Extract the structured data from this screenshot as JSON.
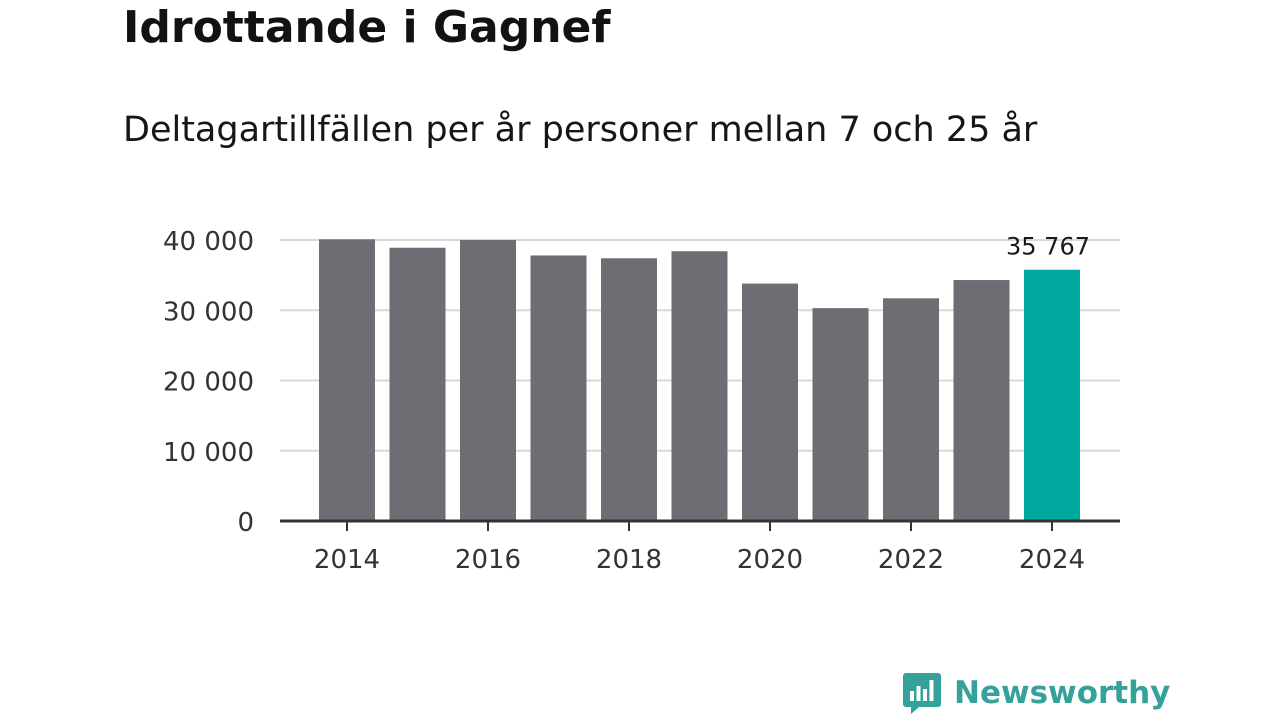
{
  "chart_data": {
    "type": "bar",
    "title": "Idrottande i Gagnef",
    "subtitle": "Deltagartillfällen per år personer mellan 7 och 25 år",
    "categories": [
      "2014",
      "2015",
      "2016",
      "2017",
      "2018",
      "2019",
      "2020",
      "2021",
      "2022",
      "2023",
      "2024"
    ],
    "values": [
      40100,
      38900,
      40000,
      37800,
      37400,
      38400,
      33800,
      30300,
      31700,
      34300,
      35767
    ],
    "highlight_index": 10,
    "highlight_label": "35 767",
    "ylim": [
      0,
      40000
    ],
    "yticks": [
      0,
      10000,
      20000,
      30000,
      40000
    ],
    "ytick_labels": [
      "0",
      "10 000",
      "20 000",
      "30 000",
      "40 000"
    ],
    "xtick_labels": [
      "2014",
      "2016",
      "2018",
      "2020",
      "2022",
      "2024"
    ],
    "xtick_indices": [
      0,
      2,
      4,
      6,
      8,
      10
    ],
    "xlabel": "",
    "ylabel": "",
    "grid": true,
    "colors": {
      "bar": "#6e6d73",
      "highlight": "#00a99d",
      "grid": "#d8d8d8",
      "axis": "#333333",
      "tick_text": "#333333"
    }
  },
  "brand": {
    "name": "Newsworthy",
    "color": "#34a19b",
    "icon": "newsworthy-logo-icon"
  }
}
